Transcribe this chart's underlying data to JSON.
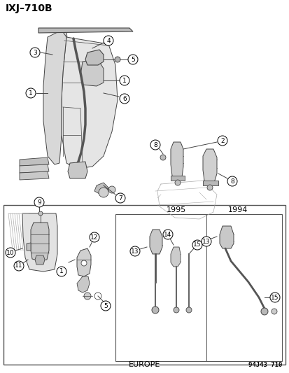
{
  "title": "IXJ–710B",
  "footer_left": "EUROPE",
  "footer_right": "94J43 710",
  "bg_color": "#ffffff",
  "lc": "#444444",
  "year_1995": "1995",
  "year_1994": "1994",
  "callout_labels": [
    1,
    2,
    3,
    4,
    5,
    6,
    7,
    8,
    9,
    10,
    11,
    12,
    13,
    14,
    15
  ]
}
